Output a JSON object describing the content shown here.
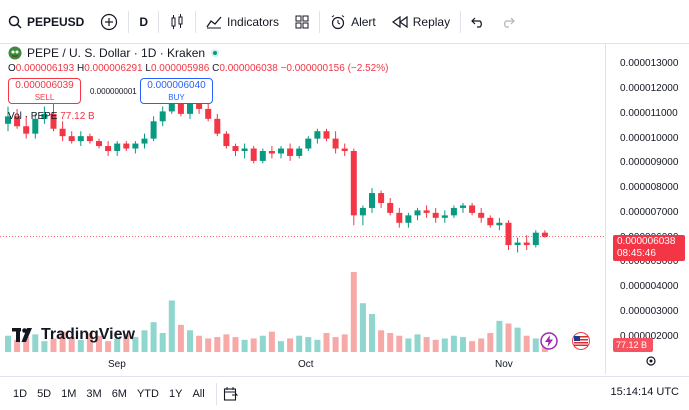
{
  "toolbar": {
    "symbol": "PEPEUSD",
    "interval": "D",
    "indicators_label": "Indicators",
    "alert_label": "Alert",
    "replay_label": "Replay"
  },
  "legend": {
    "title": "PEPE / U. S. Dollar · 1D · Kraken",
    "open_label": "O",
    "open_value": "0.000006193",
    "high_label": "H",
    "high_value": "0.000006291",
    "low_label": "L",
    "low_value": "0.000005986",
    "close_label": "C",
    "close_value": "0.000006038",
    "change": "−0.000000156 (−2.52%)"
  },
  "trade": {
    "sell_price": "0.000006039",
    "sell_label": "SELL",
    "spread": "0.000000001",
    "buy_price": "0.000006040",
    "buy_label": "BUY"
  },
  "volume_legend": {
    "label": "Vol · PEPE",
    "value": "77.12 B"
  },
  "price_axis": [
    "0.000013000",
    "0.000012000",
    "0.000011000",
    "0.000010000",
    "0.000009000",
    "0.000008000",
    "0.000007000",
    "0.000006000",
    "0.000005000",
    "0.000004000",
    "0.000003000",
    "0.000002000"
  ],
  "last_price_tag": {
    "price": "0.000006038",
    "countdown": "08:45:46"
  },
  "volume_tag": "77.12 B",
  "time_axis": [
    "Sep",
    "Oct",
    "Nov"
  ],
  "logo_text": "TradingView",
  "timeframes": [
    "1D",
    "5D",
    "1M",
    "3M",
    "6M",
    "YTD",
    "1Y",
    "All"
  ],
  "clock": "15:14:14 UTC",
  "colors": {
    "up": "#089981",
    "down": "#f23645",
    "vol_up": "#8fd6ce",
    "vol_down": "#f7a9a7"
  },
  "chart_data": {
    "type": "candlestick",
    "series": [
      {
        "o": 10.6,
        "h": 11.3,
        "l": 10.3,
        "c": 10.9
      },
      {
        "o": 10.9,
        "h": 11.2,
        "l": 10.4,
        "c": 10.5
      },
      {
        "o": 10.5,
        "h": 10.9,
        "l": 10.0,
        "c": 10.2
      },
      {
        "o": 10.2,
        "h": 11.0,
        "l": 10.0,
        "c": 10.8
      },
      {
        "o": 10.8,
        "h": 11.3,
        "l": 10.6,
        "c": 11.0
      },
      {
        "o": 11.0,
        "h": 11.4,
        "l": 10.3,
        "c": 10.4
      },
      {
        "o": 10.4,
        "h": 10.7,
        "l": 9.9,
        "c": 10.1
      },
      {
        "o": 10.1,
        "h": 10.3,
        "l": 9.8,
        "c": 9.9
      },
      {
        "o": 9.9,
        "h": 10.3,
        "l": 9.7,
        "c": 10.1
      },
      {
        "o": 10.1,
        "h": 10.2,
        "l": 9.8,
        "c": 9.9
      },
      {
        "o": 9.9,
        "h": 10.0,
        "l": 9.6,
        "c": 9.7
      },
      {
        "o": 9.7,
        "h": 9.9,
        "l": 9.3,
        "c": 9.5
      },
      {
        "o": 9.5,
        "h": 9.9,
        "l": 9.3,
        "c": 9.8
      },
      {
        "o": 9.8,
        "h": 9.9,
        "l": 9.5,
        "c": 9.6
      },
      {
        "o": 9.6,
        "h": 9.9,
        "l": 9.4,
        "c": 9.8
      },
      {
        "o": 9.8,
        "h": 10.2,
        "l": 9.6,
        "c": 10.0
      },
      {
        "o": 10.0,
        "h": 10.9,
        "l": 9.9,
        "c": 10.7
      },
      {
        "o": 10.7,
        "h": 11.3,
        "l": 10.5,
        "c": 11.1
      },
      {
        "o": 11.1,
        "h": 11.9,
        "l": 11.0,
        "c": 11.7
      },
      {
        "o": 11.7,
        "h": 11.8,
        "l": 10.9,
        "c": 11.0
      },
      {
        "o": 11.0,
        "h": 11.6,
        "l": 10.8,
        "c": 11.4
      },
      {
        "o": 11.4,
        "h": 11.7,
        "l": 11.0,
        "c": 11.2
      },
      {
        "o": 11.2,
        "h": 11.4,
        "l": 10.7,
        "c": 10.8
      },
      {
        "o": 10.8,
        "h": 11.0,
        "l": 10.1,
        "c": 10.2
      },
      {
        "o": 10.2,
        "h": 10.3,
        "l": 9.6,
        "c": 9.7
      },
      {
        "o": 9.7,
        "h": 9.8,
        "l": 9.3,
        "c": 9.5
      },
      {
        "o": 9.5,
        "h": 9.8,
        "l": 9.2,
        "c": 9.6
      },
      {
        "o": 9.6,
        "h": 9.7,
        "l": 9.0,
        "c": 9.1
      },
      {
        "o": 9.1,
        "h": 9.6,
        "l": 9.0,
        "c": 9.5
      },
      {
        "o": 9.5,
        "h": 9.7,
        "l": 9.2,
        "c": 9.4
      },
      {
        "o": 9.4,
        "h": 9.7,
        "l": 9.2,
        "c": 9.6
      },
      {
        "o": 9.6,
        "h": 9.8,
        "l": 9.1,
        "c": 9.3
      },
      {
        "o": 9.3,
        "h": 9.7,
        "l": 9.2,
        "c": 9.6
      },
      {
        "o": 9.6,
        "h": 10.1,
        "l": 9.5,
        "c": 10.0
      },
      {
        "o": 10.0,
        "h": 10.4,
        "l": 9.8,
        "c": 10.3
      },
      {
        "o": 10.3,
        "h": 10.4,
        "l": 9.9,
        "c": 10.0
      },
      {
        "o": 10.0,
        "h": 10.3,
        "l": 9.4,
        "c": 9.6
      },
      {
        "o": 9.6,
        "h": 9.8,
        "l": 9.3,
        "c": 9.5
      },
      {
        "o": 9.5,
        "h": 9.6,
        "l": 6.5,
        "c": 6.9
      },
      {
        "o": 6.9,
        "h": 7.3,
        "l": 6.5,
        "c": 7.2
      },
      {
        "o": 7.2,
        "h": 8.0,
        "l": 7.0,
        "c": 7.8
      },
      {
        "o": 7.8,
        "h": 7.9,
        "l": 7.2,
        "c": 7.4
      },
      {
        "o": 7.4,
        "h": 7.6,
        "l": 6.9,
        "c": 7.0
      },
      {
        "o": 7.0,
        "h": 7.2,
        "l": 6.4,
        "c": 6.6
      },
      {
        "o": 6.6,
        "h": 7.0,
        "l": 6.4,
        "c": 6.9
      },
      {
        "o": 6.9,
        "h": 7.2,
        "l": 6.7,
        "c": 7.1
      },
      {
        "o": 7.1,
        "h": 7.3,
        "l": 6.8,
        "c": 7.0
      },
      {
        "o": 7.0,
        "h": 7.2,
        "l": 6.6,
        "c": 6.8
      },
      {
        "o": 6.8,
        "h": 7.1,
        "l": 6.6,
        "c": 6.9
      },
      {
        "o": 6.9,
        "h": 7.3,
        "l": 6.8,
        "c": 7.2
      },
      {
        "o": 7.2,
        "h": 7.4,
        "l": 7.0,
        "c": 7.3
      },
      {
        "o": 7.3,
        "h": 7.4,
        "l": 6.9,
        "c": 7.0
      },
      {
        "o": 7.0,
        "h": 7.2,
        "l": 6.6,
        "c": 6.8
      },
      {
        "o": 6.8,
        "h": 6.9,
        "l": 6.4,
        "c": 6.5
      },
      {
        "o": 6.5,
        "h": 6.8,
        "l": 6.3,
        "c": 6.6
      },
      {
        "o": 6.6,
        "h": 6.7,
        "l": 5.5,
        "c": 5.7
      },
      {
        "o": 5.7,
        "h": 6.0,
        "l": 5.4,
        "c": 5.8
      },
      {
        "o": 5.8,
        "h": 6.1,
        "l": 5.5,
        "c": 5.7
      },
      {
        "o": 5.7,
        "h": 6.3,
        "l": 5.6,
        "c": 6.2
      },
      {
        "o": 6.2,
        "h": 6.3,
        "l": 5.99,
        "c": 6.04
      }
    ],
    "volume": [
      1.2,
      0.9,
      1.1,
      1.3,
      0.8,
      1.0,
      1.5,
      1.1,
      0.9,
      1.4,
      1.2,
      0.8,
      1.0,
      1.3,
      1.1,
      1.6,
      2.2,
      1.4,
      3.8,
      2.0,
      1.6,
      1.2,
      1.0,
      1.1,
      1.3,
      1.1,
      0.9,
      1.0,
      1.2,
      1.5,
      0.8,
      1.0,
      1.2,
      1.1,
      0.9,
      1.4,
      1.1,
      1.3,
      5.9,
      3.6,
      2.8,
      1.6,
      1.4,
      1.2,
      1.0,
      1.3,
      1.1,
      0.9,
      1.0,
      1.2,
      1.1,
      0.8,
      1.0,
      1.4,
      2.3,
      2.1,
      1.8,
      1.2,
      1.0,
      0.9
    ],
    "ylim": [
      1.5,
      13.5
    ],
    "y_unit_multiplier": "0.000001",
    "x_ticks": [
      {
        "label": "Sep",
        "index": 11
      },
      {
        "label": "Oct",
        "index": 31
      },
      {
        "label": "Nov",
        "index": 51
      }
    ]
  }
}
